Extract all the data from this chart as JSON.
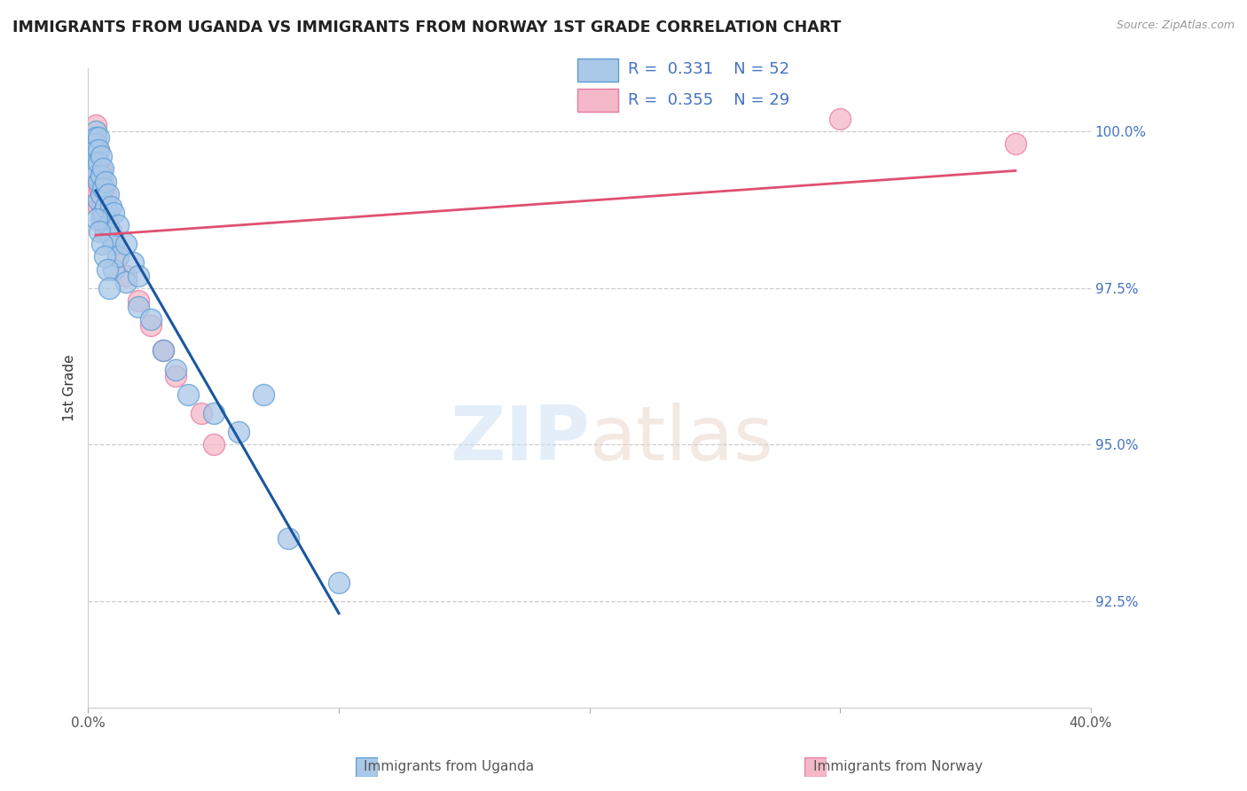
{
  "title": "IMMIGRANTS FROM UGANDA VS IMMIGRANTS FROM NORWAY 1ST GRADE CORRELATION CHART",
  "source": "Source: ZipAtlas.com",
  "xlabel_uganda": "Immigrants from Uganda",
  "xlabel_norway": "Immigrants from Norway",
  "ylabel": "1st Grade",
  "xlim": [
    0.0,
    40.0
  ],
  "ylim": [
    90.8,
    101.0
  ],
  "uganda_color": "#aac8e8",
  "norway_color": "#f4b8c8",
  "uganda_edge": "#5b9bd5",
  "norway_edge": "#e87aa0",
  "line_uganda_color": "#1a56a0",
  "line_norway_color": "#e05070",
  "watermark_zip": "ZIP",
  "watermark_atlas": "atlas",
  "legend_R_uganda": "0.331",
  "legend_N_uganda": "52",
  "legend_R_norway": "0.355",
  "legend_N_norway": "29",
  "uganda_x": [
    0.3,
    0.3,
    0.3,
    0.3,
    0.3,
    0.3,
    0.3,
    0.3,
    0.4,
    0.4,
    0.4,
    0.4,
    0.4,
    0.5,
    0.5,
    0.5,
    0.5,
    0.6,
    0.6,
    0.6,
    0.7,
    0.7,
    0.7,
    0.8,
    0.8,
    0.9,
    0.9,
    1.0,
    1.0,
    1.0,
    1.2,
    1.2,
    1.5,
    1.5,
    1.8,
    2.0,
    2.0,
    2.5,
    3.0,
    3.5,
    4.0,
    5.0,
    6.0,
    7.0,
    8.0,
    10.0,
    0.35,
    0.45,
    0.55,
    0.65,
    0.75,
    0.85
  ],
  "uganda_y": [
    100.0,
    99.9,
    99.8,
    99.7,
    99.6,
    99.5,
    99.4,
    99.3,
    99.9,
    99.7,
    99.5,
    99.2,
    98.9,
    99.6,
    99.3,
    99.0,
    98.6,
    99.4,
    99.1,
    98.7,
    99.2,
    98.8,
    98.4,
    99.0,
    98.5,
    98.8,
    98.3,
    98.7,
    98.2,
    97.8,
    98.5,
    98.0,
    98.2,
    97.6,
    97.9,
    97.7,
    97.2,
    97.0,
    96.5,
    96.2,
    95.8,
    95.5,
    95.2,
    95.8,
    93.5,
    92.8,
    98.6,
    98.4,
    98.2,
    98.0,
    97.8,
    97.5
  ],
  "norway_x": [
    0.3,
    0.3,
    0.3,
    0.3,
    0.4,
    0.4,
    0.4,
    0.5,
    0.5,
    0.6,
    0.6,
    0.7,
    0.7,
    0.8,
    0.9,
    1.0,
    1.2,
    1.5,
    2.0,
    2.5,
    3.0,
    3.5,
    4.5,
    5.0,
    30.0,
    37.0,
    0.45,
    0.55,
    0.65
  ],
  "norway_y": [
    100.1,
    99.8,
    99.5,
    99.1,
    99.7,
    99.3,
    98.8,
    99.4,
    98.9,
    99.2,
    98.6,
    99.0,
    98.4,
    98.7,
    98.4,
    98.2,
    98.0,
    97.7,
    97.3,
    96.9,
    96.5,
    96.1,
    95.5,
    95.0,
    100.2,
    99.8,
    99.1,
    98.8,
    98.5
  ]
}
